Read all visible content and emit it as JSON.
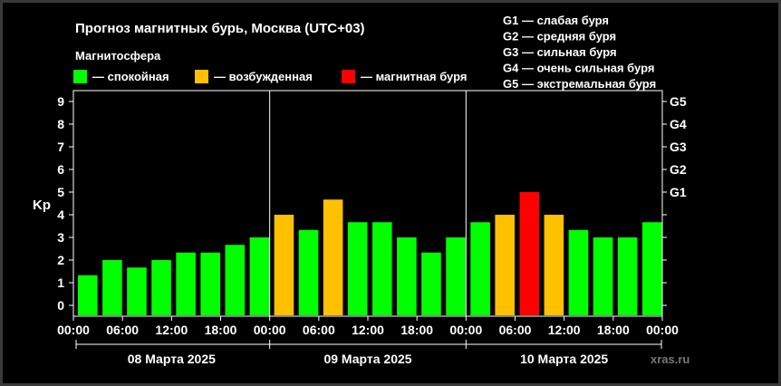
{
  "title": "Прогноз магнитных бурь, Москва (UTC+03)",
  "legend": {
    "heading": "Магнитосфера",
    "items": [
      {
        "label": "— спокойная",
        "color": "#00ff00"
      },
      {
        "label": "— возбужденная",
        "color": "#ffc000"
      },
      {
        "label": "— магнитная буря",
        "color": "#ff0000"
      }
    ]
  },
  "storm_scale": [
    "G1 — слабая буря",
    "G2 — средняя буря",
    "G3 — сильная буря",
    "G4 — очень сильная буря",
    "G5 — экстремальная буря"
  ],
  "watermark": "xras.ru",
  "chart_data": {
    "type": "bar",
    "ylabel": "Kp",
    "ylim": [
      0,
      9
    ],
    "y_ticks": [
      "0",
      "1",
      "2",
      "3",
      "4",
      "5",
      "6",
      "7",
      "8",
      "9"
    ],
    "right_ticks": [
      "G1",
      "G2",
      "G3",
      "G4",
      "G5"
    ],
    "x_tick_labels": [
      "00:00",
      "06:00",
      "12:00",
      "18:00",
      "00:00",
      "06:00",
      "12:00",
      "18:00",
      "00:00",
      "06:00",
      "12:00",
      "18:00",
      "00:00"
    ],
    "days": [
      "08 Марта 2025",
      "09 Марта 2025",
      "10 Марта 2025"
    ],
    "grid": false,
    "values": [
      1.33,
      2.0,
      1.67,
      2.0,
      2.33,
      2.33,
      2.67,
      3.0,
      4.0,
      3.33,
      4.67,
      3.67,
      3.67,
      3.0,
      2.33,
      3.0,
      3.67,
      4.0,
      5.0,
      4.0,
      3.33,
      3.0,
      3.0,
      3.67
    ],
    "levels": [
      "quiet",
      "quiet",
      "quiet",
      "quiet",
      "quiet",
      "quiet",
      "quiet",
      "quiet",
      "active",
      "quiet",
      "active",
      "quiet",
      "quiet",
      "quiet",
      "quiet",
      "quiet",
      "quiet",
      "active",
      "storm",
      "active",
      "quiet",
      "quiet",
      "quiet",
      "quiet"
    ],
    "colors": {
      "quiet": "#00ff00",
      "active": "#ffc000",
      "storm": "#ff0000"
    }
  }
}
